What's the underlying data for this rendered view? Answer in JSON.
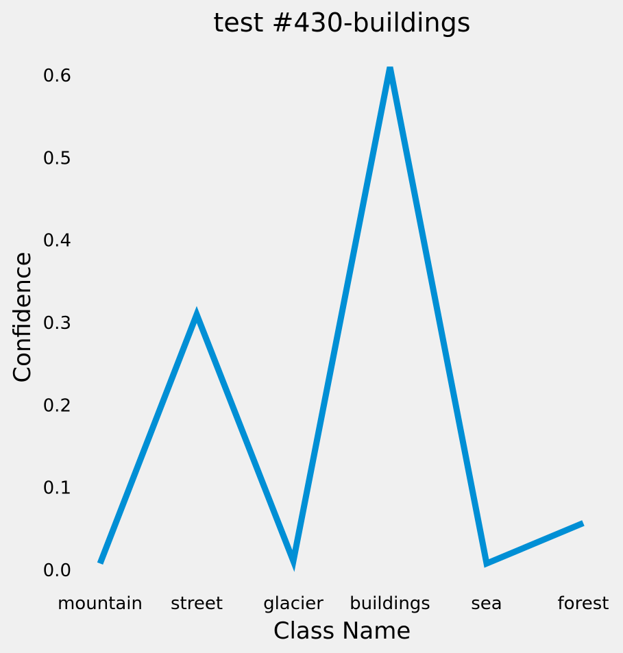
{
  "chart_data": {
    "type": "line",
    "title": "test #430-buildings",
    "xlabel": "Class Name",
    "ylabel": "Confidence",
    "categories": [
      "mountain",
      "street",
      "glacier",
      "buildings",
      "sea",
      "forest"
    ],
    "series": [
      {
        "values": [
          0.008,
          0.31,
          0.011,
          0.61,
          0.008,
          0.057
        ]
      }
    ],
    "ylim": [
      0,
      0.6
    ],
    "yticks": [
      "0.0",
      "0.1",
      "0.2",
      "0.3",
      "0.4",
      "0.5",
      "0.6"
    ],
    "grid": false,
    "line_color": "#008fd5",
    "background_color": "#f0f0f0"
  }
}
